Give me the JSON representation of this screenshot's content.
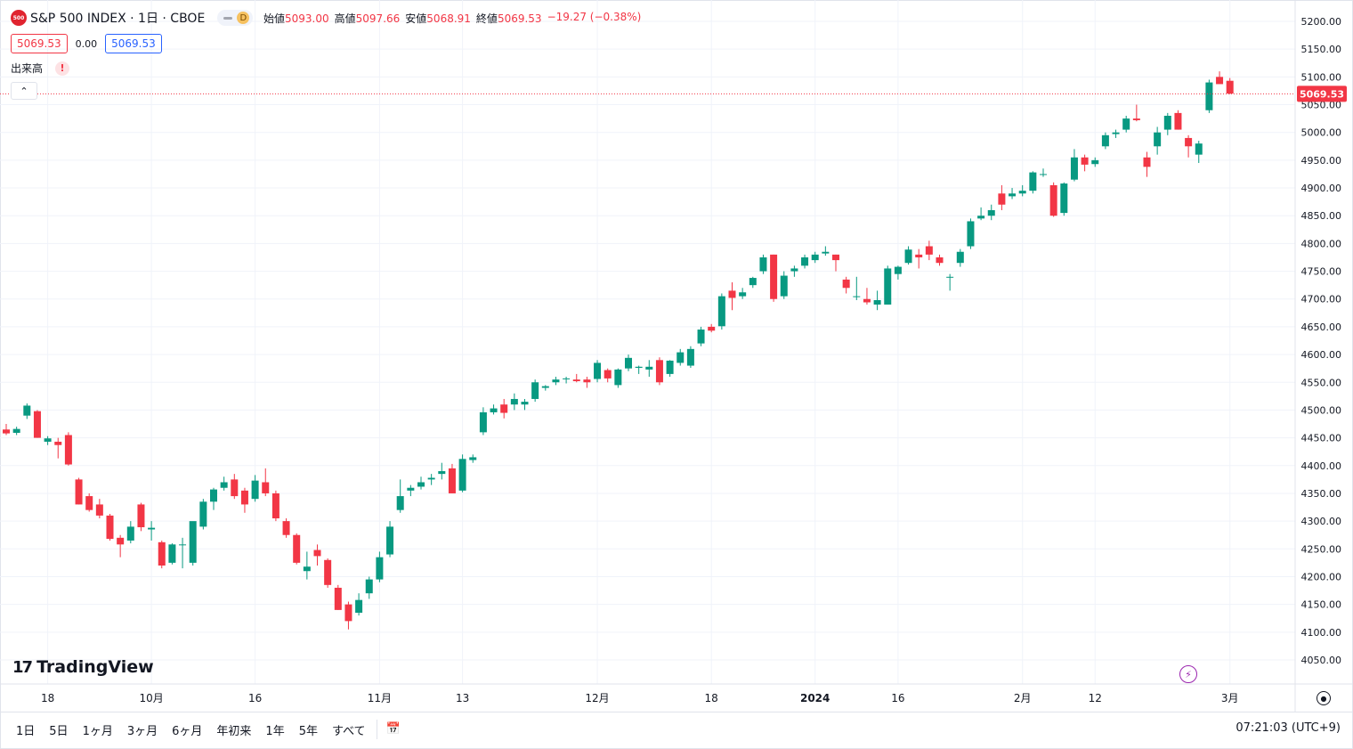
{
  "header": {
    "symbol_logo": "500",
    "title": "S&P 500 INDEX · 1日 · CBOE",
    "status_letter": "D",
    "ohlc": [
      {
        "label": "始値",
        "value": "5093.00"
      },
      {
        "label": "高値",
        "value": "5097.66"
      },
      {
        "label": "安値",
        "value": "5068.91"
      },
      {
        "label": "終値",
        "value": "5069.53"
      }
    ],
    "change": "−19.27 (−0.38%)",
    "bid": "5069.53",
    "spread": "0.00",
    "ask": "5069.53",
    "volume_label": "出来高",
    "warning_icon": "!"
  },
  "colors": {
    "up": "#089981",
    "down": "#f23645",
    "price_line": "#f23645",
    "grid": "#f0f3fa"
  },
  "price_tag": "5069.53",
  "watermark": "TradingView",
  "bottom": {
    "ranges": [
      "1日",
      "5日",
      "1ヶ月",
      "3ヶ月",
      "6ヶ月",
      "年初来",
      "1年",
      "5年",
      "すべて"
    ],
    "clock": "07:21:03 (UTC+9)"
  },
  "chart_data": {
    "type": "candlestick",
    "y_ticks": [
      4050,
      4100,
      4150,
      4200,
      4250,
      4300,
      4350,
      4400,
      4450,
      4500,
      4550,
      4600,
      4650,
      4700,
      4750,
      4800,
      4850,
      4900,
      4950,
      5000,
      5050,
      5100,
      5150,
      5200
    ],
    "ylim": [
      4035,
      5215
    ],
    "grid": true,
    "x_labels": [
      {
        "label": "18",
        "index": 4
      },
      {
        "label": "10月",
        "index": 14
      },
      {
        "label": "16",
        "index": 24
      },
      {
        "label": "11月",
        "index": 36
      },
      {
        "label": "13",
        "index": 44
      },
      {
        "label": "12月",
        "index": 57
      },
      {
        "label": "18",
        "index": 68
      },
      {
        "label": "2024",
        "index": 78,
        "bold": true
      },
      {
        "label": "16",
        "index": 86
      },
      {
        "label": "2月",
        "index": 98
      },
      {
        "label": "12",
        "index": 105
      },
      {
        "label": "3月",
        "index": 118
      }
    ],
    "last_price": 5069.53,
    "candles": [
      [
        4465,
        4475,
        4455,
        4458
      ],
      [
        4459,
        4470,
        4455,
        4466
      ],
      [
        4490,
        4512,
        4484,
        4508
      ],
      [
        4498,
        4500,
        4450,
        4450
      ],
      [
        4443,
        4453,
        4437,
        4449
      ],
      [
        4443,
        4450,
        4413,
        4437
      ],
      [
        4455,
        4460,
        4400,
        4402
      ],
      [
        4375,
        4378,
        4330,
        4330
      ],
      [
        4345,
        4350,
        4317,
        4320
      ],
      [
        4330,
        4340,
        4305,
        4310
      ],
      [
        4310,
        4313,
        4265,
        4268
      ],
      [
        4270,
        4275,
        4235,
        4258
      ],
      [
        4265,
        4300,
        4260,
        4290
      ],
      [
        4330,
        4333,
        4282,
        4289
      ],
      [
        4285,
        4300,
        4265,
        4288
      ],
      [
        4262,
        4265,
        4215,
        4220
      ],
      [
        4225,
        4260,
        4222,
        4258
      ],
      [
        4258,
        4270,
        4215,
        4258
      ],
      [
        4225,
        4290,
        4220,
        4300
      ],
      [
        4290,
        4340,
        4285,
        4335
      ],
      [
        4335,
        4360,
        4320,
        4357
      ],
      [
        4360,
        4380,
        4355,
        4370
      ],
      [
        4375,
        4385,
        4340,
        4345
      ],
      [
        4355,
        4360,
        4315,
        4330
      ],
      [
        4340,
        4383,
        4335,
        4373
      ],
      [
        4370,
        4395,
        4345,
        4350
      ],
      [
        4350,
        4355,
        4300,
        4305
      ],
      [
        4300,
        4305,
        4270,
        4275
      ],
      [
        4275,
        4278,
        4222,
        4225
      ],
      [
        4210,
        4245,
        4195,
        4218
      ],
      [
        4248,
        4258,
        4220,
        4237
      ],
      [
        4230,
        4233,
        4180,
        4185
      ],
      [
        4180,
        4185,
        4140,
        4140
      ],
      [
        4150,
        4155,
        4105,
        4120
      ],
      [
        4135,
        4170,
        4130,
        4158
      ],
      [
        4170,
        4200,
        4160,
        4195
      ],
      [
        4195,
        4245,
        4190,
        4235
      ],
      [
        4240,
        4300,
        4235,
        4290
      ],
      [
        4320,
        4375,
        4315,
        4345
      ],
      [
        4355,
        4365,
        4345,
        4360
      ],
      [
        4362,
        4380,
        4357,
        4370
      ],
      [
        4375,
        4385,
        4365,
        4378
      ],
      [
        4385,
        4405,
        4375,
        4390
      ],
      [
        4395,
        4403,
        4350,
        4350
      ],
      [
        4355,
        4420,
        4352,
        4412
      ],
      [
        4410,
        4420,
        4405,
        4415
      ],
      [
        4460,
        4505,
        4455,
        4496
      ],
      [
        4496,
        4510,
        4492,
        4503
      ],
      [
        4510,
        4520,
        4485,
        4495
      ],
      [
        4510,
        4530,
        4500,
        4520
      ],
      [
        4510,
        4520,
        4500,
        4515
      ],
      [
        4520,
        4555,
        4515,
        4550
      ],
      [
        4540,
        4545,
        4535,
        4543
      ],
      [
        4550,
        4560,
        4545,
        4555
      ],
      [
        4556,
        4560,
        4548,
        4557
      ],
      [
        4555,
        4565,
        4550,
        4552
      ],
      [
        4555,
        4560,
        4540,
        4550
      ],
      [
        4556,
        4590,
        4550,
        4585
      ],
      [
        4572,
        4575,
        4550,
        4557
      ],
      [
        4545,
        4575,
        4540,
        4573
      ],
      [
        4575,
        4600,
        4570,
        4594
      ],
      [
        4576,
        4580,
        4565,
        4578
      ],
      [
        4573,
        4590,
        4560,
        4578
      ],
      [
        4590,
        4595,
        4545,
        4550
      ],
      [
        4565,
        4590,
        4560,
        4589
      ],
      [
        4585,
        4610,
        4580,
        4604
      ],
      [
        4580,
        4615,
        4576,
        4610
      ],
      [
        4620,
        4650,
        4615,
        4645
      ],
      [
        4650,
        4655,
        4640,
        4643
      ],
      [
        4651,
        4710,
        4645,
        4705
      ],
      [
        4715,
        4730,
        4680,
        4702
      ],
      [
        4705,
        4720,
        4700,
        4712
      ],
      [
        4725,
        4740,
        4720,
        4738
      ],
      [
        4750,
        4780,
        4745,
        4775
      ],
      [
        4780,
        4780,
        4695,
        4700
      ],
      [
        4705,
        4750,
        4700,
        4742
      ],
      [
        4750,
        4760,
        4740,
        4755
      ],
      [
        4760,
        4780,
        4755,
        4775
      ],
      [
        4770,
        4785,
        4765,
        4780
      ],
      [
        4782,
        4795,
        4778,
        4785
      ],
      [
        4780,
        4780,
        4750,
        4770
      ],
      [
        4735,
        4740,
        4710,
        4720
      ],
      [
        4705,
        4740,
        4698,
        4705
      ],
      [
        4700,
        4720,
        4690,
        4694
      ],
      [
        4690,
        4715,
        4680,
        4698
      ],
      [
        4690,
        4760,
        4690,
        4755
      ],
      [
        4745,
        4760,
        4735,
        4758
      ],
      [
        4765,
        4795,
        4762,
        4789
      ],
      [
        4780,
        4790,
        4755,
        4775
      ],
      [
        4795,
        4805,
        4770,
        4780
      ],
      [
        4775,
        4780,
        4760,
        4765
      ],
      [
        4740,
        4745,
        4715,
        4740
      ],
      [
        4765,
        4790,
        4758,
        4785
      ],
      [
        4795,
        4845,
        4790,
        4840
      ],
      [
        4845,
        4865,
        4842,
        4850
      ],
      [
        4850,
        4870,
        4842,
        4860
      ],
      [
        4890,
        4905,
        4860,
        4870
      ],
      [
        4885,
        4900,
        4880,
        4890
      ],
      [
        4890,
        4905,
        4885,
        4895
      ],
      [
        4895,
        4930,
        4890,
        4928
      ],
      [
        4925,
        4935,
        4920,
        4925
      ],
      [
        4905,
        4910,
        4848,
        4850
      ],
      [
        4855,
        4910,
        4850,
        4908
      ],
      [
        4915,
        4970,
        4912,
        4955
      ],
      [
        4955,
        4960,
        4930,
        4942
      ],
      [
        4943,
        4955,
        4938,
        4950
      ],
      [
        4975,
        5000,
        4970,
        4995
      ],
      [
        4997,
        5005,
        4990,
        5000
      ],
      [
        5005,
        5030,
        5000,
        5025
      ],
      [
        5025,
        5050,
        5020,
        5022
      ],
      [
        4955,
        4965,
        4920,
        4938
      ],
      [
        4975,
        5010,
        4960,
        5000
      ],
      [
        5005,
        5035,
        4995,
        5030
      ],
      [
        5035,
        5040,
        5005,
        5005
      ],
      [
        4990,
        4995,
        4955,
        4975
      ],
      [
        4960,
        4985,
        4945,
        4980
      ],
      [
        5040,
        5095,
        5035,
        5090
      ],
      [
        5100,
        5110,
        5090,
        5087
      ],
      [
        5093,
        5098,
        5069,
        5070
      ]
    ]
  }
}
